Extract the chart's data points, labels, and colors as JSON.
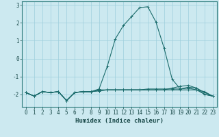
{
  "xlabel": "Humidex (Indice chaleur)",
  "ylabel": "",
  "bg_color": "#cce9f0",
  "grid_color": "#9ecfdc",
  "line_color": "#1a6b6b",
  "xlim": [
    -0.5,
    23.5
  ],
  "ylim": [
    -2.7,
    3.2
  ],
  "yticks": [
    -2,
    -1,
    0,
    1,
    2,
    3
  ],
  "xticks": [
    0,
    1,
    2,
    3,
    4,
    5,
    6,
    7,
    8,
    9,
    10,
    11,
    12,
    13,
    14,
    15,
    16,
    17,
    18,
    19,
    20,
    21,
    22,
    23
  ],
  "lines": [
    [
      -1.9,
      -2.1,
      -1.85,
      -1.9,
      -1.85,
      -2.35,
      -1.9,
      -1.85,
      -1.85,
      -1.8,
      -1.75,
      -1.75,
      -1.75,
      -1.75,
      -1.75,
      -1.75,
      -1.75,
      -1.75,
      -1.75,
      -1.75,
      -1.75,
      -1.75,
      -2.0,
      -2.1
    ],
    [
      -1.9,
      -2.1,
      -1.85,
      -1.9,
      -1.85,
      -2.35,
      -1.9,
      -1.85,
      -1.85,
      -1.7,
      -0.45,
      1.1,
      1.85,
      2.35,
      2.85,
      2.9,
      2.05,
      0.6,
      -1.15,
      -1.7,
      -1.65,
      -1.75,
      -1.85,
      -2.1
    ],
    [
      -1.9,
      -2.1,
      -1.85,
      -1.9,
      -1.85,
      -2.35,
      -1.9,
      -1.85,
      -1.85,
      -1.75,
      -1.75,
      -1.75,
      -1.75,
      -1.75,
      -1.75,
      -1.7,
      -1.7,
      -1.7,
      -1.7,
      -1.7,
      -1.6,
      -1.65,
      -2.0,
      -2.1
    ],
    [
      -1.9,
      -2.1,
      -1.85,
      -1.9,
      -1.85,
      -2.35,
      -1.9,
      -1.85,
      -1.85,
      -1.8,
      -1.75,
      -1.75,
      -1.75,
      -1.75,
      -1.75,
      -1.75,
      -1.75,
      -1.75,
      -1.65,
      -1.55,
      -1.5,
      -1.65,
      -1.9,
      -2.1
    ]
  ],
  "xlabel_fontsize": 6.5,
  "tick_fontsize": 5.5,
  "spine_color": "#2a7a7a",
  "tick_color": "#1a4a4a"
}
